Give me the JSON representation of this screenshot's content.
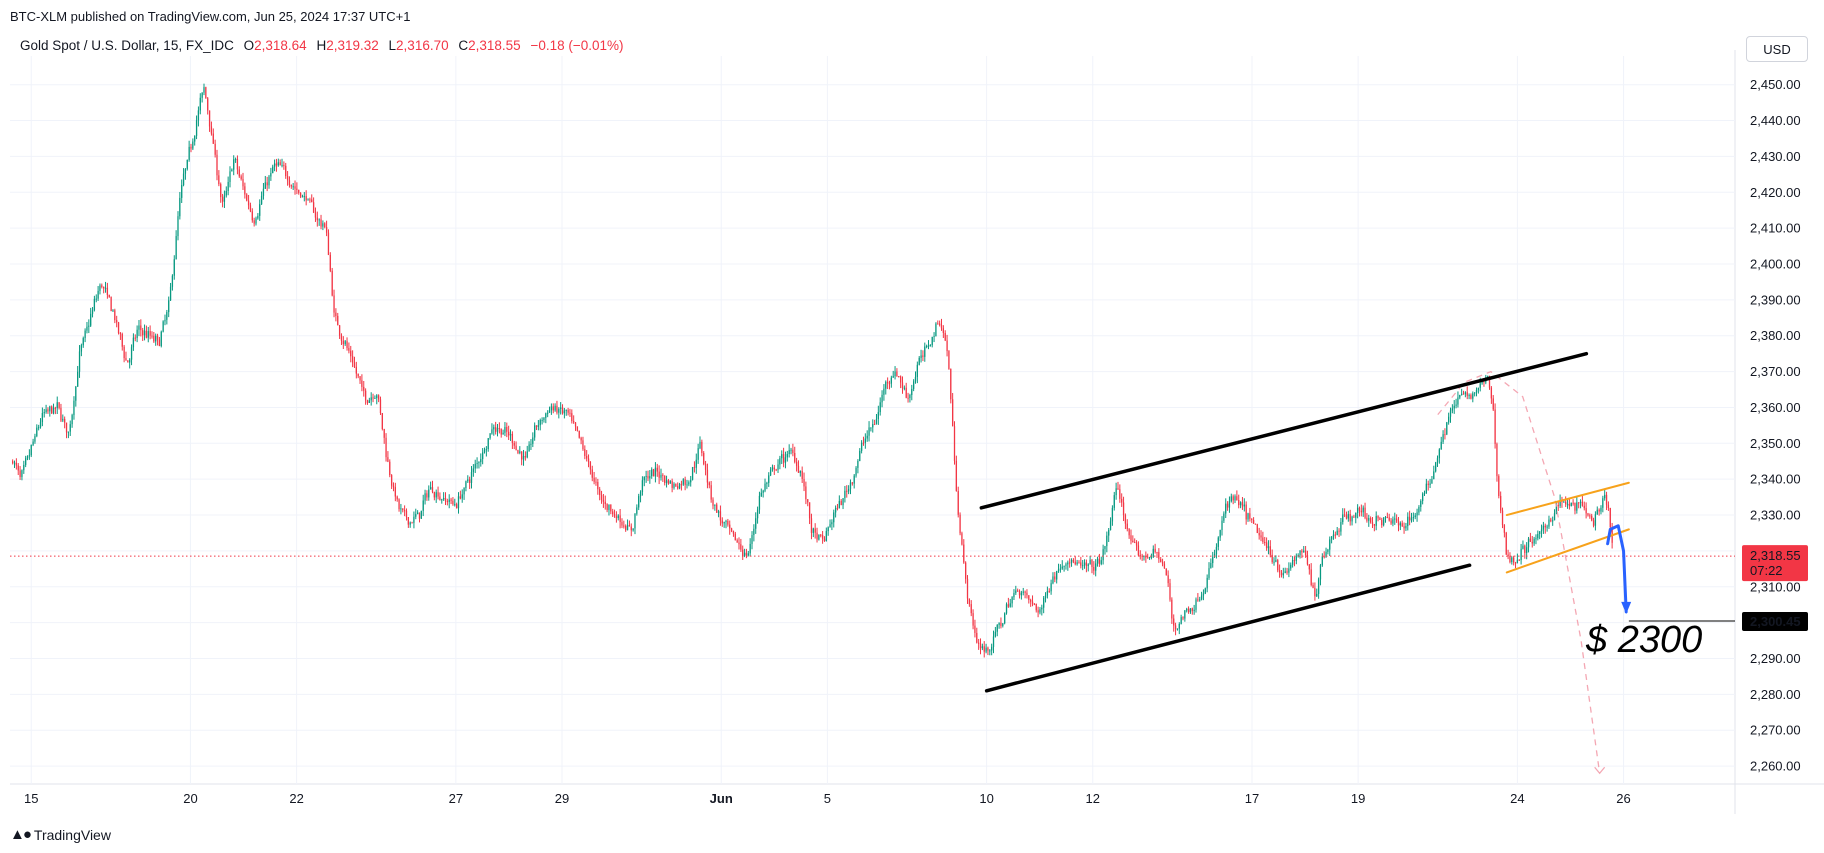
{
  "header": {
    "published": "BTC-XLM published on TradingView.com, Jun 25, 2024 17:37 UTC+1"
  },
  "legend": {
    "symbol": "Gold Spot / U.S. Dollar, 15, FX_IDC",
    "o_label": "O",
    "o": "2,318.64",
    "h_label": "H",
    "h": "2,319.32",
    "l_label": "L",
    "l": "2,316.70",
    "c_label": "C",
    "c": "2,318.55",
    "change": "−0.18 (−0.01%)"
  },
  "currency_button": "USD",
  "footer": {
    "brand": "TradingView",
    "logo": "tradingview-logo-icon"
  },
  "colors": {
    "up": "#089981",
    "down": "#f23645",
    "channel": "#000000",
    "orange": "#f7a21b",
    "arrow": "#2962ff",
    "projection": "#f4a7b3"
  },
  "chart_data": {
    "type": "candlestick",
    "title": "",
    "xlabel": "",
    "ylabel": "",
    "ylim": [
      2255,
      2458
    ],
    "y_ticks": [
      2260,
      2270,
      2280,
      2290,
      2300,
      2310,
      2320,
      2330,
      2340,
      2350,
      2360,
      2370,
      2380,
      2390,
      2400,
      2410,
      2420,
      2430,
      2440,
      2450
    ],
    "y_tick_labels": [
      "2,260.00",
      "2,270.00",
      "2,280.00",
      "2,290.00",
      "2,300.00",
      "2,310.00",
      "2,320.00",
      "2,330.00",
      "2,340.00",
      "2,350.00",
      "2,360.00",
      "2,370.00",
      "2,380.00",
      "2,390.00",
      "2,400.00",
      "2,410.00",
      "2,420.00",
      "2,430.00",
      "2,440.00",
      "2,450.00"
    ],
    "x_ticks": [
      {
        "label": "15",
        "t": 0.5
      },
      {
        "label": "20",
        "t": 3.5
      },
      {
        "label": "22",
        "t": 5.5
      },
      {
        "label": "27",
        "t": 8.5
      },
      {
        "label": "29",
        "t": 10.5
      },
      {
        "label": "Jun",
        "t": 13.5
      },
      {
        "label": "5",
        "t": 15.5
      },
      {
        "label": "10",
        "t": 18.5
      },
      {
        "label": "12",
        "t": 20.5
      },
      {
        "label": "17",
        "t": 23.5
      },
      {
        "label": "19",
        "t": 25.5
      },
      {
        "label": "24",
        "t": 28.5
      },
      {
        "label": "26",
        "t": 30.5
      }
    ],
    "x_range": [
      0.1,
      32.6
    ],
    "last_t": 30.3,
    "anchors": [
      [
        0.15,
        2345
      ],
      [
        0.3,
        2340
      ],
      [
        0.7,
        2358
      ],
      [
        1.0,
        2360
      ],
      [
        1.2,
        2352
      ],
      [
        1.4,
        2375
      ],
      [
        1.6,
        2385
      ],
      [
        1.8,
        2395
      ],
      [
        2.0,
        2388
      ],
      [
        2.3,
        2372
      ],
      [
        2.5,
        2382
      ],
      [
        2.9,
        2378
      ],
      [
        3.1,
        2390
      ],
      [
        3.3,
        2420
      ],
      [
        3.6,
        2440
      ],
      [
        3.75,
        2450
      ],
      [
        3.9,
        2435
      ],
      [
        4.1,
        2415
      ],
      [
        4.3,
        2430
      ],
      [
        4.5,
        2420
      ],
      [
        4.7,
        2412
      ],
      [
        4.9,
        2422
      ],
      [
        5.1,
        2428
      ],
      [
        5.3,
        2425
      ],
      [
        5.5,
        2420
      ],
      [
        5.7,
        2418
      ],
      [
        5.9,
        2412
      ],
      [
        6.05,
        2410
      ],
      [
        6.2,
        2385
      ],
      [
        6.4,
        2378
      ],
      [
        6.6,
        2370
      ],
      [
        6.8,
        2362
      ],
      [
        7.0,
        2365
      ],
      [
        7.2,
        2345
      ],
      [
        7.4,
        2332
      ],
      [
        7.6,
        2328
      ],
      [
        7.8,
        2330
      ],
      [
        8.0,
        2338
      ],
      [
        8.2,
        2335
      ],
      [
        8.5,
        2333
      ],
      [
        8.8,
        2342
      ],
      [
        9.0,
        2348
      ],
      [
        9.2,
        2355
      ],
      [
        9.5,
        2352
      ],
      [
        9.8,
        2345
      ],
      [
        10.0,
        2355
      ],
      [
        10.3,
        2360
      ],
      [
        10.6,
        2358
      ],
      [
        10.9,
        2348
      ],
      [
        11.2,
        2335
      ],
      [
        11.5,
        2330
      ],
      [
        11.8,
        2325
      ],
      [
        12.0,
        2340
      ],
      [
        12.3,
        2342
      ],
      [
        12.6,
        2338
      ],
      [
        12.9,
        2340
      ],
      [
        13.1,
        2350
      ],
      [
        13.3,
        2335
      ],
      [
        13.5,
        2328
      ],
      [
        13.8,
        2322
      ],
      [
        14.0,
        2318
      ],
      [
        14.2,
        2335
      ],
      [
        14.5,
        2343
      ],
      [
        14.8,
        2348
      ],
      [
        15.0,
        2342
      ],
      [
        15.2,
        2325
      ],
      [
        15.4,
        2322
      ],
      [
        15.6,
        2330
      ],
      [
        15.8,
        2335
      ],
      [
        16.0,
        2342
      ],
      [
        16.2,
        2352
      ],
      [
        16.4,
        2356
      ],
      [
        16.6,
        2368
      ],
      [
        16.8,
        2370
      ],
      [
        17.0,
        2362
      ],
      [
        17.2,
        2372
      ],
      [
        17.4,
        2378
      ],
      [
        17.6,
        2385
      ],
      [
        17.7,
        2380
      ],
      [
        17.8,
        2368
      ],
      [
        17.9,
        2340
      ],
      [
        18.0,
        2325
      ],
      [
        18.1,
        2310
      ],
      [
        18.2,
        2302
      ],
      [
        18.3,
        2294
      ],
      [
        18.5,
        2292
      ],
      [
        18.7,
        2298
      ],
      [
        18.9,
        2305
      ],
      [
        19.1,
        2310
      ],
      [
        19.3,
        2306
      ],
      [
        19.5,
        2303
      ],
      [
        19.7,
        2312
      ],
      [
        20.0,
        2318
      ],
      [
        20.3,
        2315
      ],
      [
        20.6,
        2316
      ],
      [
        20.8,
        2325
      ],
      [
        20.9,
        2338
      ],
      [
        21.0,
        2335
      ],
      [
        21.2,
        2322
      ],
      [
        21.4,
        2318
      ],
      [
        21.7,
        2320
      ],
      [
        21.9,
        2312
      ],
      [
        22.0,
        2298
      ],
      [
        22.2,
        2302
      ],
      [
        22.4,
        2305
      ],
      [
        22.6,
        2310
      ],
      [
        22.8,
        2320
      ],
      [
        22.95,
        2330
      ],
      [
        23.1,
        2335
      ],
      [
        23.3,
        2332
      ],
      [
        23.6,
        2325
      ],
      [
        23.9,
        2318
      ],
      [
        24.1,
        2313
      ],
      [
        24.3,
        2318
      ],
      [
        24.5,
        2320
      ],
      [
        24.6,
        2310
      ],
      [
        24.7,
        2308
      ],
      [
        24.8,
        2318
      ],
      [
        25.0,
        2324
      ],
      [
        25.2,
        2329
      ],
      [
        25.5,
        2331
      ],
      [
        25.8,
        2328
      ],
      [
        26.0,
        2329
      ],
      [
        26.3,
        2327
      ],
      [
        26.6,
        2331
      ],
      [
        26.8,
        2338
      ],
      [
        27.0,
        2348
      ],
      [
        27.2,
        2358
      ],
      [
        27.4,
        2363
      ],
      [
        27.6,
        2363
      ],
      [
        27.8,
        2366
      ],
      [
        27.95,
        2368
      ],
      [
        28.05,
        2357
      ],
      [
        28.1,
        2340
      ],
      [
        28.2,
        2328
      ],
      [
        28.3,
        2318
      ],
      [
        28.5,
        2318
      ],
      [
        28.7,
        2322
      ],
      [
        28.9,
        2324
      ],
      [
        29.1,
        2329
      ],
      [
        29.3,
        2334
      ],
      [
        29.5,
        2332
      ],
      [
        29.7,
        2333
      ],
      [
        29.9,
        2328
      ],
      [
        30.05,
        2330
      ],
      [
        30.15,
        2336
      ],
      [
        30.25,
        2326
      ],
      [
        30.3,
        2318
      ]
    ],
    "annotations": {
      "channel_upper": {
        "from": [
          18.4,
          2332
        ],
        "to": [
          29.8,
          2375
        ]
      },
      "channel_lower": {
        "from": [
          18.5,
          2281
        ],
        "to": [
          27.6,
          2316
        ]
      },
      "orange_upper": {
        "from": [
          28.3,
          2330
        ],
        "to": [
          30.6,
          2339
        ]
      },
      "orange_lower": {
        "from": [
          28.3,
          2314
        ],
        "to": [
          30.6,
          2326
        ]
      },
      "projection": [
        [
          27.0,
          2358
        ],
        [
          27.5,
          2367
        ],
        [
          28.0,
          2370
        ],
        [
          28.6,
          2363
        ],
        [
          29.2,
          2335
        ],
        [
          29.7,
          2295
        ],
        [
          30.05,
          2258
        ]
      ],
      "blue_arrow": [
        [
          30.2,
          2322
        ],
        [
          30.25,
          2326
        ],
        [
          30.4,
          2327
        ],
        [
          30.5,
          2320
        ],
        [
          30.55,
          2303
        ]
      ],
      "target_line": {
        "y": 2300.45,
        "from_t": 30.6
      },
      "target_text": "$ 2300",
      "target_price": "2,300.45",
      "current_price": {
        "value": 2318.55,
        "label": "2,318.55",
        "countdown": "07:22"
      }
    }
  }
}
